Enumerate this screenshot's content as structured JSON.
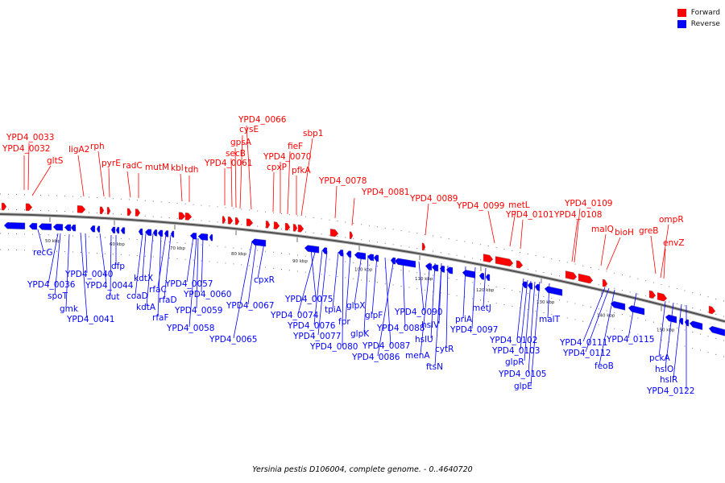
{
  "caption": "Yersinia pestis D106004, complete genome. - 0..4640720",
  "legend": {
    "forward": {
      "label": "Forward",
      "color": "#ff0000"
    },
    "reverse": {
      "label": "Reverse",
      "color": "#0000ff"
    }
  },
  "ticks": [
    "50 kbp",
    "60 kbp",
    "70 kbp",
    "80 kbp",
    "90 kbp",
    "100 kbp",
    "110 kbp",
    "120 kbp",
    "130 kbp",
    "140 kbp",
    "150 kbp"
  ],
  "forward_genes": [
    "YPD4_0032",
    "YPD4_0033",
    "gltS",
    "ligA2",
    "rph",
    "pyrE",
    "radC",
    "mutM",
    "kbl",
    "tdh",
    "YPD4_0061",
    "secB",
    "gpsA",
    "cysE",
    "YPD4_0066",
    "cpxP",
    "YPD4_0070",
    "fieF",
    "pfkA",
    "sbp1",
    "YPD4_0078",
    "YPD4_0081",
    "YPD4_0089",
    "YPD4_0099",
    "metL",
    "YPD4_0101",
    "YPD4_0108",
    "YPD4_0109",
    "malQ",
    "bioH",
    "greB",
    "envZ",
    "ompR"
  ],
  "reverse_genes": [
    "recG",
    "YPD4_0036",
    "spoT",
    "gmk",
    "YPD4_0041",
    "YPD4_0040",
    "YPD4_0044",
    "dut",
    "dfp",
    "kdtX",
    "coaD",
    "kdtA",
    "rfaF",
    "rfaC",
    "rfaD",
    "YPD4_0057",
    "YPD4_0060",
    "YPD4_0059",
    "YPD4_0058",
    "YPD4_0065",
    "YPD4_0067",
    "cpxR",
    "YPD4_0075",
    "YPD4_0074",
    "YPD4_0076",
    "YPD4_0077",
    "YPD4_0080",
    "tpiA",
    "fpr",
    "glpX",
    "glpK",
    "glpF",
    "YPD4_0087",
    "YPD4_0086",
    "YPD4_0088",
    "YPD4_0090",
    "menA",
    "hslU",
    "hslV",
    "ftsN",
    "cytR",
    "priA",
    "YPD4_0097",
    "metJ",
    "YPD4_0102",
    "YPD4_0103",
    "glpR",
    "YPD4_0105",
    "glpE",
    "malT",
    "YPD4_0111",
    "YPD4_0112",
    "feoB",
    "YPD4_0115",
    "pckA",
    "hslO",
    "hslR",
    "YPD4_0122"
  ]
}
